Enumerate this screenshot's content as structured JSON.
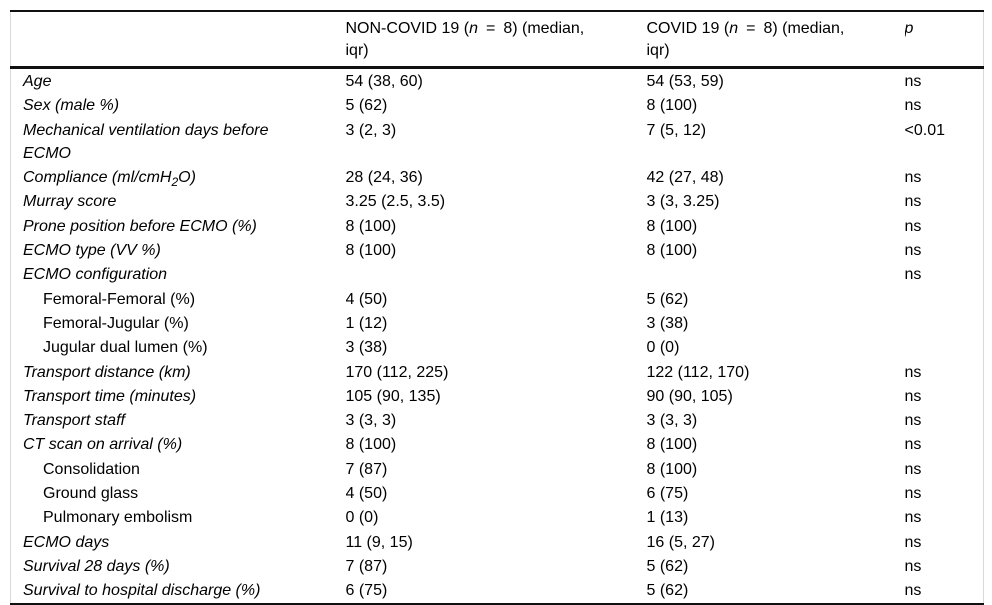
{
  "table": {
    "border_color": "#101010",
    "side_border_color": "#d9d9d9",
    "text_color": "#000000",
    "background": "#ffffff",
    "header": {
      "col_label": "",
      "col_noncovid": {
        "pre": "NON-COVID 19 (",
        "var": "n",
        "eq": "=",
        "post": "8) (median,",
        "line2": "iqr)"
      },
      "col_covid": {
        "pre": "COVID 19 (",
        "var": "n",
        "eq": "=",
        "post": "8) (median,",
        "line2": "iqr)"
      },
      "col_p": "p"
    },
    "rows": [
      {
        "label": "Age",
        "indent": false,
        "noncovid": "54 (38, 60)",
        "covid": "54 (53, 59)",
        "p": "ns"
      },
      {
        "label": "Sex (male %)",
        "indent": false,
        "noncovid": "5 (62)",
        "covid": "8 (100)",
        "p": "ns"
      },
      {
        "label": "Mechanical ventilation days before ECMO",
        "indent": false,
        "noncovid": "3 (2, 3)",
        "covid": "7 (5, 12)",
        "p": "<0.01"
      },
      {
        "label": "Compliance (ml/cmH2O)",
        "label_parts": {
          "pre": "Compliance (ml/cmH",
          "sub": "2",
          "post": "O)"
        },
        "indent": false,
        "noncovid": "28 (24, 36)",
        "covid": "42 (27, 48)",
        "p": "ns"
      },
      {
        "label": "Murray score",
        "indent": false,
        "noncovid": "3.25 (2.5, 3.5)",
        "covid": "3 (3, 3.25)",
        "p": "ns"
      },
      {
        "label": "Prone position before ECMO (%)",
        "indent": false,
        "noncovid": "8 (100)",
        "covid": "8 (100)",
        "p": "ns"
      },
      {
        "label": "ECMO type (VV %)",
        "indent": false,
        "noncovid": "8 (100)",
        "covid": "8 (100)",
        "p": "ns"
      },
      {
        "label": "ECMO configuration",
        "indent": false,
        "noncovid": "",
        "covid": "",
        "p": "ns"
      },
      {
        "label": "Femoral-Femoral (%)",
        "indent": true,
        "noncovid": "4 (50)",
        "covid": "5 (62)",
        "p": ""
      },
      {
        "label": "Femoral-Jugular (%)",
        "indent": true,
        "noncovid": "1 (12)",
        "covid": "3 (38)",
        "p": ""
      },
      {
        "label": "Jugular dual lumen (%)",
        "indent": true,
        "noncovid": "3 (38)",
        "covid": "0 (0)",
        "p": ""
      },
      {
        "label": "Transport distance (km)",
        "indent": false,
        "noncovid": "170 (112, 225)",
        "covid": "122 (112, 170)",
        "p": "ns"
      },
      {
        "label": "Transport time (minutes)",
        "indent": false,
        "noncovid": "105 (90, 135)",
        "covid": "90 (90, 105)",
        "p": "ns"
      },
      {
        "label": "Transport staff",
        "indent": false,
        "noncovid": "3 (3, 3)",
        "covid": "3 (3, 3)",
        "p": "ns"
      },
      {
        "label": "CT scan on arrival (%)",
        "indent": false,
        "noncovid": "8 (100)",
        "covid": "8 (100)",
        "p": "ns"
      },
      {
        "label": "Consolidation",
        "indent": true,
        "noncovid": "7 (87)",
        "covid": "8 (100)",
        "p": "ns"
      },
      {
        "label": "Ground glass",
        "indent": true,
        "noncovid": "4 (50)",
        "covid": "6 (75)",
        "p": "ns"
      },
      {
        "label": "Pulmonary embolism",
        "indent": true,
        "noncovid": "0 (0)",
        "covid": "1 (13)",
        "p": "ns"
      },
      {
        "label": "ECMO days",
        "indent": false,
        "noncovid": "11 (9, 15)",
        "covid": "16 (5, 27)",
        "p": "ns"
      },
      {
        "label": "Survival 28 days (%)",
        "indent": false,
        "noncovid": "7 (87)",
        "covid": "5 (62)",
        "p": "ns"
      },
      {
        "label": "Survival to hospital discharge (%)",
        "indent": false,
        "noncovid": "6 (75)",
        "covid": "5 (62)",
        "p": "ns"
      }
    ]
  }
}
